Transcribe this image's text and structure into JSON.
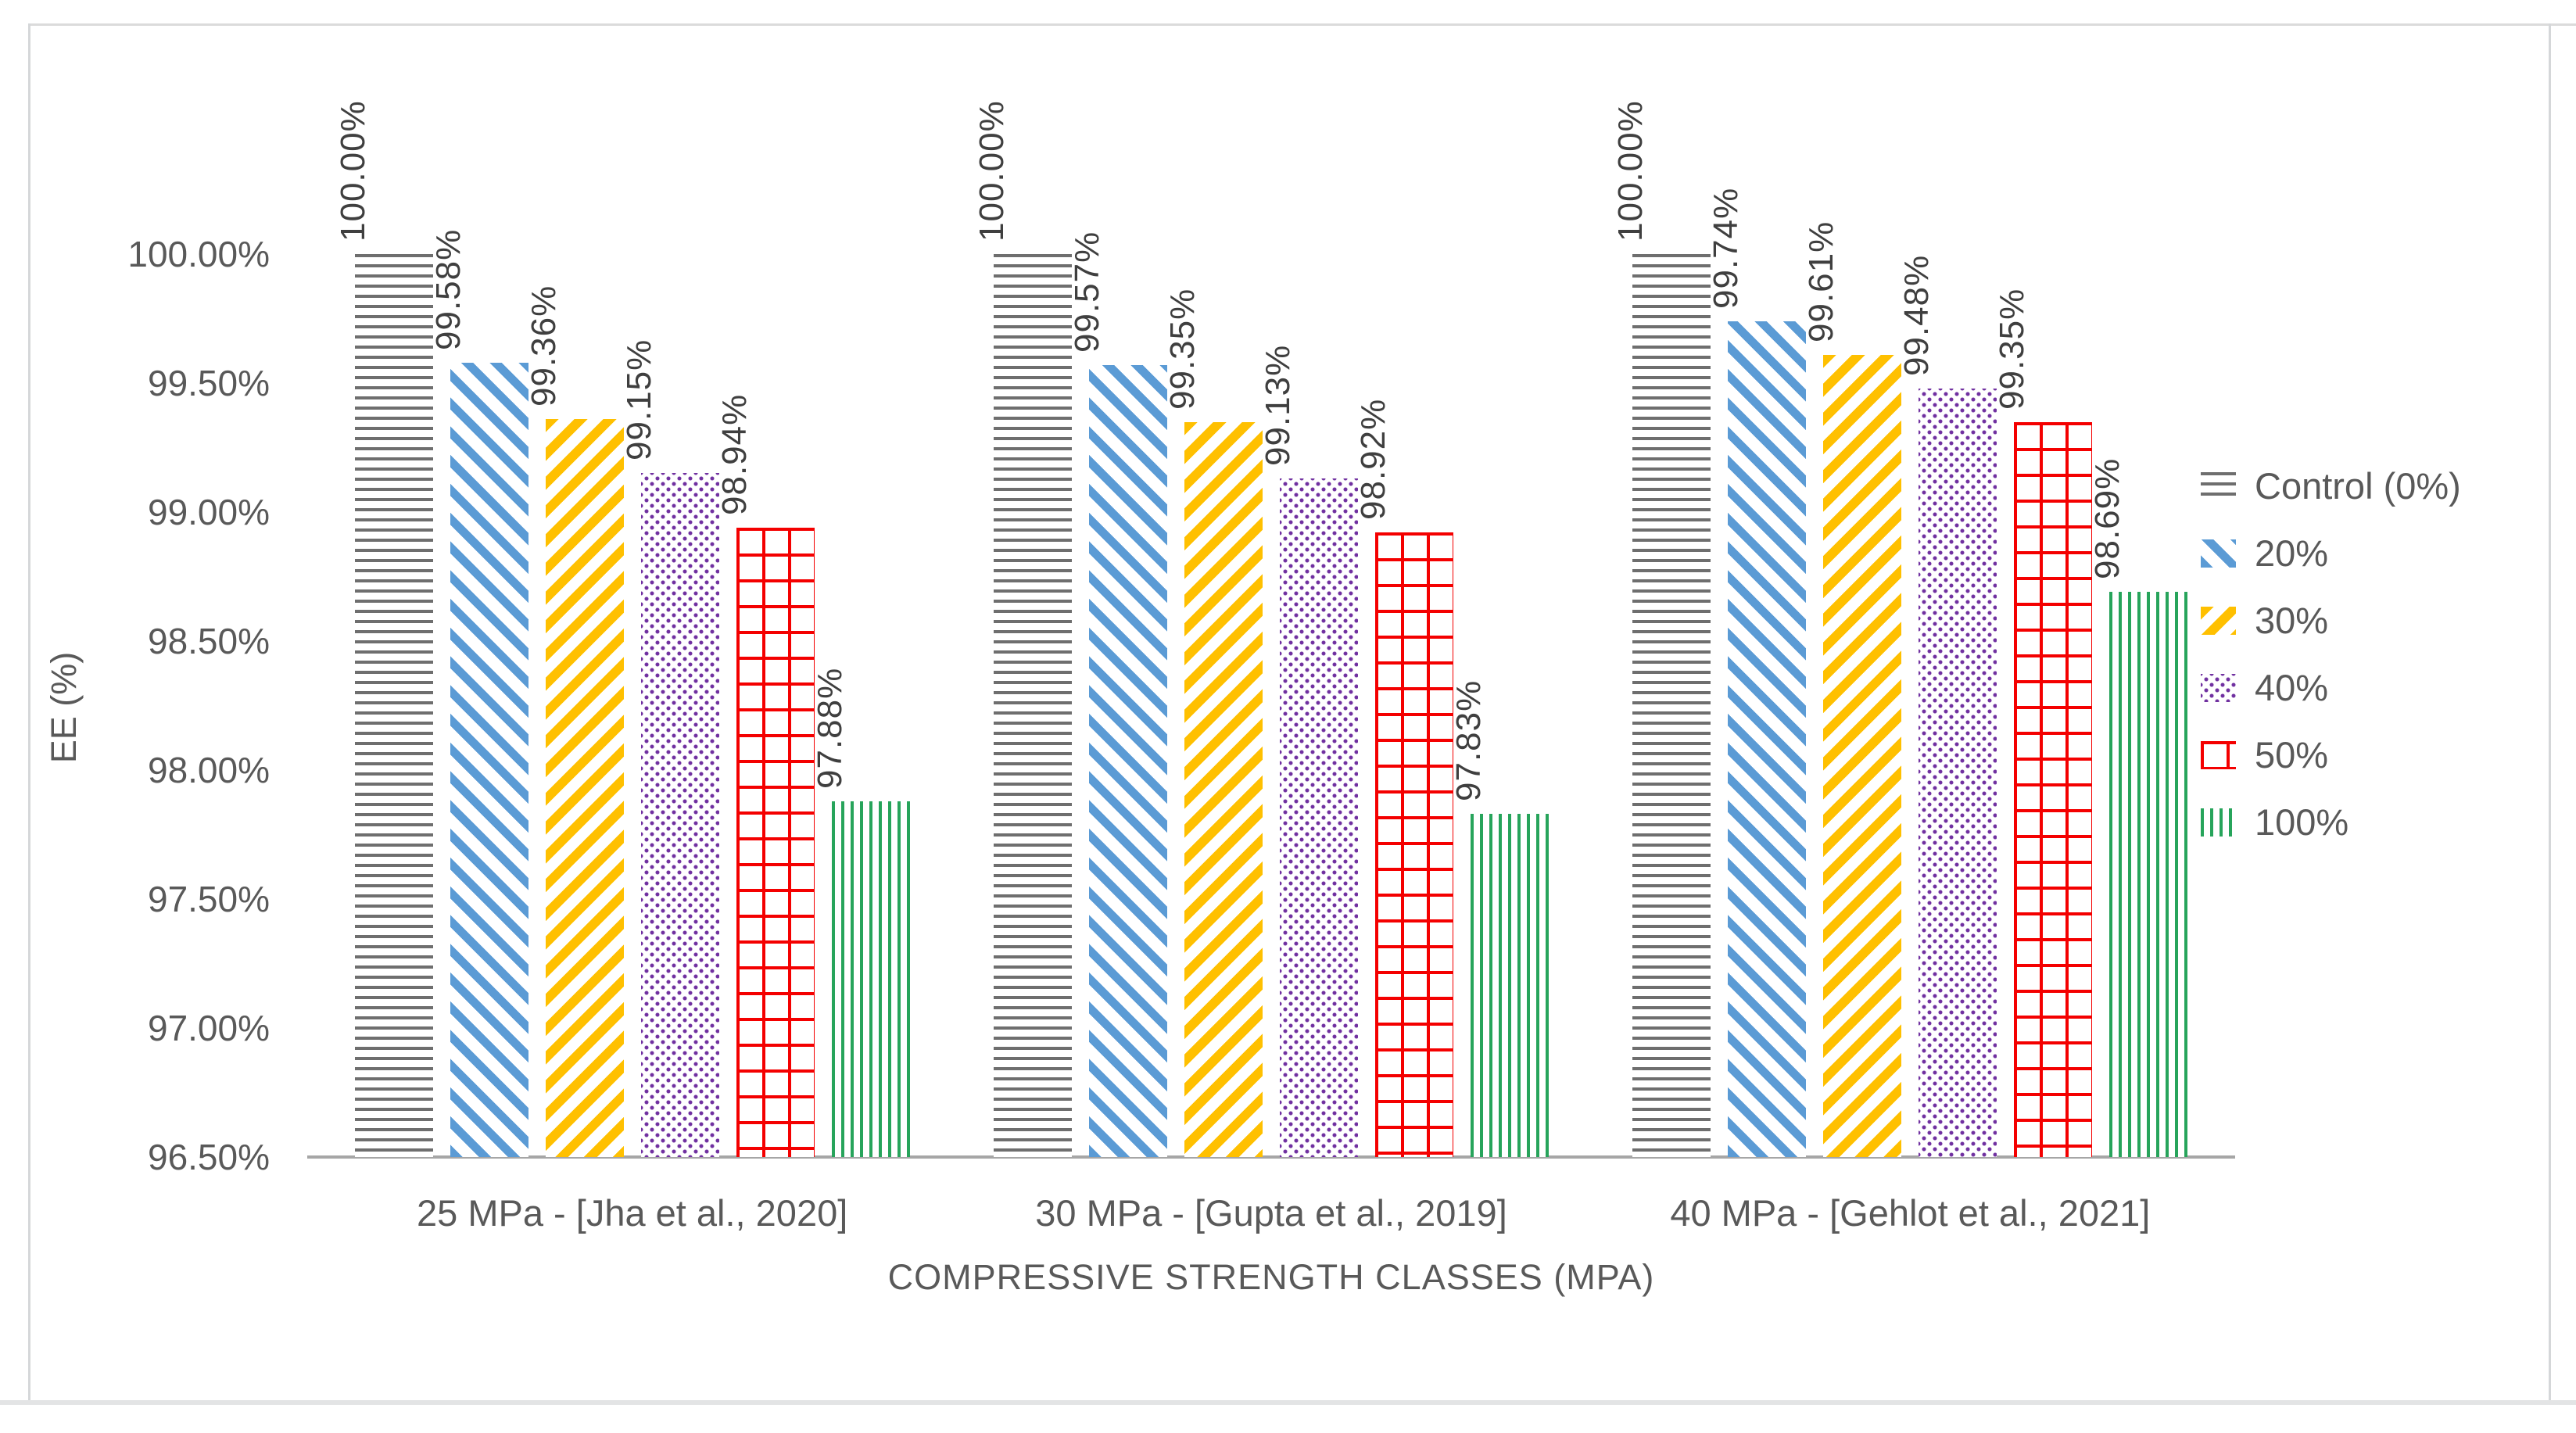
{
  "figure": {
    "background": "#FFFFFF",
    "frame_border_color": "#D9D9D9"
  },
  "chart_data": {
    "type": "bar",
    "title": "",
    "xlabel": "COMPRESSIVE STRENGTH CLASSES (MPA)",
    "ylabel": "EE (%)",
    "grid": false,
    "legend_position": "right",
    "y_axis": {
      "min": 96.5,
      "max": 100.0,
      "step": 0.5,
      "tick_labels": [
        "100.00%",
        "99.50%",
        "99.00%",
        "98.50%",
        "98.00%",
        "97.50%",
        "97.00%",
        "96.50%"
      ]
    },
    "categories": [
      "25 MPa - [Jha et al., 2020]",
      "30 MPa - [Gupta et al., 2019]",
      "40 MPa - [Gehlot et al., 2021]"
    ],
    "series": [
      {
        "name": "Control (0%)",
        "pattern": "horizontal-lines",
        "color": "#6E6E6E",
        "values": [
          100.0,
          100.0,
          100.0
        ],
        "labels": [
          "100.00%",
          "100.00%",
          "100.00%"
        ]
      },
      {
        "name": "20%",
        "pattern": "diagonal-forward",
        "color": "#5B9BD5",
        "values": [
          99.58,
          99.57,
          99.74
        ],
        "labels": [
          "99.58%",
          "99.57%",
          "99.74%"
        ]
      },
      {
        "name": "30%",
        "pattern": "diagonal-back",
        "color": "#FFC000",
        "values": [
          99.36,
          99.35,
          99.61
        ],
        "labels": [
          "99.36%",
          "99.35%",
          "99.61%"
        ]
      },
      {
        "name": "40%",
        "pattern": "dots",
        "color": "#7030A0",
        "values": [
          99.15,
          99.13,
          99.48
        ],
        "labels": [
          "99.15%",
          "99.13%",
          "99.48%"
        ]
      },
      {
        "name": "50%",
        "pattern": "grid",
        "color": "#F40000",
        "values": [
          98.94,
          98.92,
          99.35
        ],
        "labels": [
          "98.94%",
          "98.92%",
          "99.35%"
        ]
      },
      {
        "name": "100%",
        "pattern": "vertical-lines",
        "color": "#27A45B",
        "values": [
          97.88,
          97.83,
          98.69
        ],
        "labels": [
          "97.88%",
          "97.83%",
          "98.69%"
        ]
      }
    ],
    "axis_colors": {
      "baseline": "#A6A6A6",
      "tick_text": "#595959",
      "data_label_text": "#3F3F3F"
    }
  }
}
